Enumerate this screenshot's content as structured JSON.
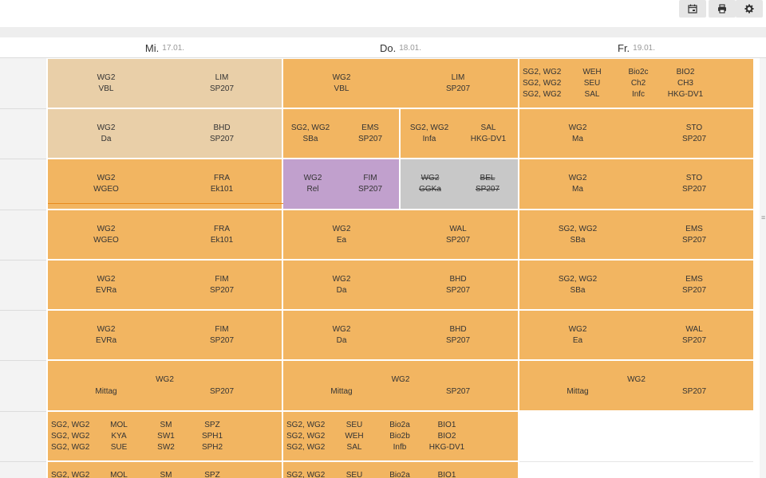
{
  "toolbar": {
    "calendar_icon": "calendar-icon",
    "print_icon": "print-icon",
    "settings_icon": "gear-icon"
  },
  "days": [
    {
      "name": "Mi.",
      "date": "17.01."
    },
    {
      "name": "Do.",
      "date": "18.01."
    },
    {
      "name": "Fr.",
      "date": "19.01."
    }
  ],
  "colors": {
    "lesson": "#f2b561",
    "lesson_light": "#e9cfa8",
    "substitution": "#c1a0cd",
    "cancelled": "#c8c8c8"
  },
  "lessons": {
    "mi_1": {
      "class": "WG2",
      "subject": "VBL",
      "teacher": "LIM",
      "room": "SP207"
    },
    "mi_2": {
      "class": "WG2",
      "subject": "Da",
      "teacher": "BHD",
      "room": "SP207"
    },
    "mi_3": {
      "class": "WG2",
      "subject": "WGEO",
      "teacher": "FRA",
      "room": "Ek101"
    },
    "mi_4": {
      "class": "WG2",
      "subject": "WGEO",
      "teacher": "FRA",
      "room": "Ek101"
    },
    "mi_5": {
      "class": "WG2",
      "subject": "EVRa",
      "teacher": "FIM",
      "room": "SP207"
    },
    "mi_6": {
      "class": "WG2",
      "subject": "EVRa",
      "teacher": "FIM",
      "room": "SP207"
    },
    "mi_7": {
      "class": "WG2",
      "subject": "Mittag",
      "room": "SP207"
    },
    "mi_8": [
      [
        "SG2, WG2",
        "MOL",
        "SM",
        "SPZ"
      ],
      [
        "SG2, WG2",
        "KYA",
        "SW1",
        "SPH1"
      ],
      [
        "SG2, WG2",
        "SUE",
        "SW2",
        "SPH2"
      ]
    ],
    "mi_9": [
      "SG2, WG2",
      "MOL",
      "SM",
      "SPZ"
    ],
    "do_1": {
      "class": "WG2",
      "subject": "VBL",
      "teacher": "LIM",
      "room": "SP207"
    },
    "do_2a": {
      "class": "SG2, WG2",
      "subject": "SBa",
      "teacher": "EMS",
      "room": "SP207"
    },
    "do_2b": {
      "class": "SG2, WG2",
      "subject": "Infa",
      "teacher": "SAL",
      "room": "HKG-DV1"
    },
    "do_3a": {
      "class": "WG2",
      "subject": "Rel",
      "teacher": "FIM",
      "room": "SP207"
    },
    "do_3b": {
      "class": "WG2",
      "subject": "GGKa",
      "teacher": "BEL",
      "room": "SP207"
    },
    "do_4": {
      "class": "WG2",
      "subject": "Ea",
      "teacher": "WAL",
      "room": "SP207"
    },
    "do_5": {
      "class": "WG2",
      "subject": "Da",
      "teacher": "BHD",
      "room": "SP207"
    },
    "do_6": {
      "class": "WG2",
      "subject": "Da",
      "teacher": "BHD",
      "room": "SP207"
    },
    "do_7": {
      "class": "WG2",
      "subject": "Mittag",
      "room": "SP207"
    },
    "do_8": [
      [
        "SG2, WG2",
        "SEU",
        "Bio2a",
        "BIO1"
      ],
      [
        "SG2, WG2",
        "WEH",
        "Bio2b",
        "BIO2"
      ],
      [
        "SG2, WG2",
        "SAL",
        "Infb",
        "HKG-DV1"
      ]
    ],
    "do_9": [
      "SG2, WG2",
      "SEU",
      "Bio2a",
      "BIO1"
    ],
    "fr_1": [
      [
        "SG2, WG2",
        "WEH",
        "Bio2c",
        "BIO2"
      ],
      [
        "SG2, WG2",
        "SEU",
        "Ch2",
        "CH3"
      ],
      [
        "SG2, WG2",
        "SAL",
        "Infc",
        "HKG-DV1"
      ]
    ],
    "fr_2": {
      "class": "WG2",
      "subject": "Ma",
      "teacher": "STO",
      "room": "SP207"
    },
    "fr_3": {
      "class": "WG2",
      "subject": "Ma",
      "teacher": "STO",
      "room": "SP207"
    },
    "fr_4": {
      "class": "SG2, WG2",
      "subject": "SBa",
      "teacher": "EMS",
      "room": "SP207"
    },
    "fr_5": {
      "class": "SG2, WG2",
      "subject": "SBa",
      "teacher": "EMS",
      "room": "SP207"
    },
    "fr_6": {
      "class": "WG2",
      "subject": "Ea",
      "teacher": "WAL",
      "room": "SP207"
    },
    "fr_7": {
      "class": "WG2",
      "subject": "Mittag",
      "room": "SP207"
    }
  }
}
